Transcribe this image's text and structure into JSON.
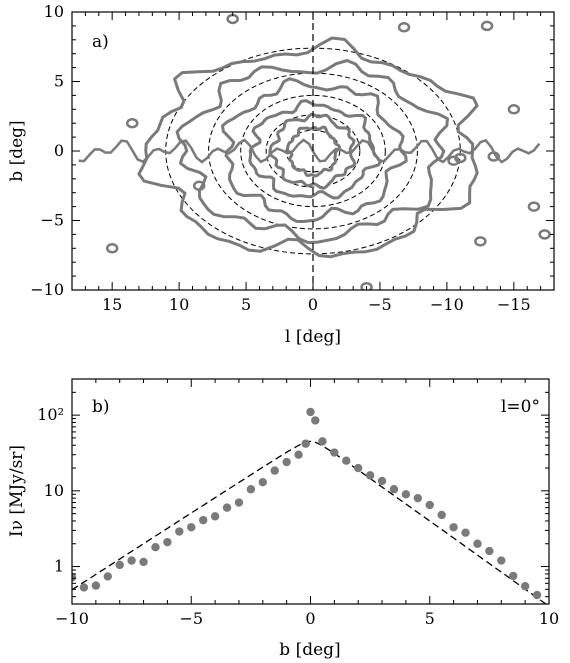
{
  "colors": {
    "data": "#7a7a7a",
    "model": "#000000",
    "frame": "#000000"
  },
  "chart_data": [
    {
      "type": "contour",
      "panel_label": "a)",
      "xlabel": "l [deg]",
      "ylabel": "b [deg]",
      "xlim": [
        18,
        -18
      ],
      "ylim": [
        -10,
        10
      ],
      "x_ticks": [
        15,
        10,
        5,
        0,
        -5,
        -10,
        -15
      ],
      "x_tick_labels": [
        "15",
        "10",
        "5",
        "0",
        "−5",
        "−10",
        "−15"
      ],
      "y_ticks": [
        10,
        5,
        0,
        -5,
        -10
      ],
      "y_tick_labels": [
        "10",
        "5",
        "0",
        "−5",
        "−10"
      ],
      "reference_line_l": 0,
      "model_contours": [
        {
          "a": 2.0,
          "b": 1.5
        },
        {
          "a": 3.5,
          "b": 2.6
        },
        {
          "a": 5.4,
          "b": 4.0
        },
        {
          "a": 7.8,
          "b": 5.6
        },
        {
          "a": 11.0,
          "b": 7.4
        }
      ],
      "data_contours": [
        {
          "a": 1.8,
          "b": 1.7
        },
        {
          "a": 3.0,
          "b": 2.5
        },
        {
          "a": 4.6,
          "b": 3.3
        },
        {
          "a": 6.5,
          "b": 4.8
        },
        {
          "a": 9.6,
          "b": 6.1
        },
        {
          "a": 12.2,
          "b": 7.3
        }
      ],
      "data_blobs": [
        {
          "l": 6.0,
          "b": 9.5
        },
        {
          "l": -6.8,
          "b": 8.9
        },
        {
          "l": -13.0,
          "b": 9.0
        },
        {
          "l": 8.5,
          "b": -2.5
        },
        {
          "l": 15.0,
          "b": -7.0
        },
        {
          "l": -4.0,
          "b": -9.8
        },
        {
          "l": -17.3,
          "b": -6.0
        },
        {
          "l": -16.5,
          "b": -4.0
        },
        {
          "l": -12.5,
          "b": -6.5
        },
        {
          "l": -11.0,
          "b": -0.5
        },
        {
          "l": -10.5,
          "b": -0.7
        },
        {
          "l": -13.5,
          "b": -0.4
        },
        {
          "l": 13.5,
          "b": 2.0
        },
        {
          "l": -15.0,
          "b": 3.0
        }
      ]
    },
    {
      "type": "scatter",
      "panel_label": "b)",
      "annotation": "l=0°",
      "xlabel": "b [deg]",
      "ylabel": "Iν [MJy/sr]",
      "yscale": "log",
      "xlim": [
        -10,
        10
      ],
      "ylim": [
        0.32,
        300
      ],
      "x_ticks": [
        -10,
        -5,
        0,
        5,
        10
      ],
      "x_tick_labels": [
        "−10",
        "−5",
        "0",
        "5",
        "10"
      ],
      "y_ticks": [
        1,
        10,
        100
      ],
      "y_tick_labels": [
        "1",
        "10",
        "10²"
      ],
      "points": [
        {
          "x": -10.0,
          "y": 0.72
        },
        {
          "x": -9.5,
          "y": 0.53
        },
        {
          "x": -9.0,
          "y": 0.56
        },
        {
          "x": -8.5,
          "y": 0.74
        },
        {
          "x": -8.0,
          "y": 1.05
        },
        {
          "x": -7.5,
          "y": 1.2
        },
        {
          "x": -7.0,
          "y": 1.15
        },
        {
          "x": -6.5,
          "y": 1.8
        },
        {
          "x": -6.0,
          "y": 2.1
        },
        {
          "x": -5.5,
          "y": 2.9
        },
        {
          "x": -5.0,
          "y": 3.3
        },
        {
          "x": -4.5,
          "y": 4.1
        },
        {
          "x": -4.0,
          "y": 4.6
        },
        {
          "x": -3.5,
          "y": 6.0
        },
        {
          "x": -3.0,
          "y": 7.0
        },
        {
          "x": -2.5,
          "y": 10.5
        },
        {
          "x": -2.0,
          "y": 13.0
        },
        {
          "x": -1.5,
          "y": 18.5
        },
        {
          "x": -1.0,
          "y": 24.0
        },
        {
          "x": -0.5,
          "y": 30.0
        },
        {
          "x": -0.2,
          "y": 42.0
        },
        {
          "x": 0.0,
          "y": 110.0
        },
        {
          "x": 0.2,
          "y": 85.0
        },
        {
          "x": 0.5,
          "y": 45.0
        },
        {
          "x": 1.0,
          "y": 32.0
        },
        {
          "x": 1.5,
          "y": 25.0
        },
        {
          "x": 2.0,
          "y": 20.0
        },
        {
          "x": 2.5,
          "y": 16.0
        },
        {
          "x": 3.0,
          "y": 13.5
        },
        {
          "x": 3.5,
          "y": 10.5
        },
        {
          "x": 4.0,
          "y": 9.0
        },
        {
          "x": 4.5,
          "y": 8.0
        },
        {
          "x": 5.0,
          "y": 6.5
        },
        {
          "x": 5.5,
          "y": 4.8
        },
        {
          "x": 6.0,
          "y": 3.3
        },
        {
          "x": 6.5,
          "y": 2.8
        },
        {
          "x": 7.0,
          "y": 2.0
        },
        {
          "x": 7.5,
          "y": 1.6
        },
        {
          "x": 8.0,
          "y": 1.2
        },
        {
          "x": 8.5,
          "y": 0.75
        },
        {
          "x": 9.0,
          "y": 0.55
        },
        {
          "x": 9.5,
          "y": 0.42
        }
      ],
      "model_line": {
        "peak": 45,
        "peak_at": 0,
        "at_minus_10": 0.42,
        "at_plus_10": 0.25
      }
    }
  ]
}
